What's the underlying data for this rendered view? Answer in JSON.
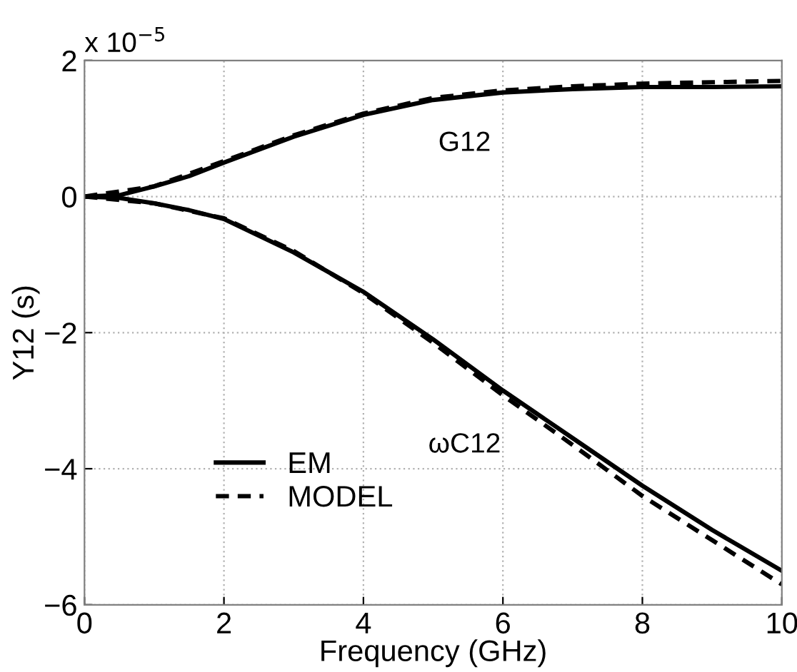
{
  "chart_data": {
    "type": "line",
    "xlabel": "Frequency (GHz)",
    "ylabel": "Y12 (s)",
    "xlim": [
      0,
      10
    ],
    "xticks": [
      0,
      2,
      4,
      6,
      8,
      10
    ],
    "ylim": [
      -6,
      2
    ],
    "yticks": [
      -6,
      -4,
      -2,
      0,
      2
    ],
    "grid": true,
    "legend": "bottom left",
    "annotations": [
      "x 10$^{−5}$",
      "G12",
      "ωC12"
    ],
    "series": [
      {
        "name": "EM",
        "color": "#000000",
        "line_style": "solid",
        "x": [
          0,
          0.5,
          1,
          1.5,
          2,
          3,
          4,
          5,
          6,
          7,
          8,
          9,
          10
        ],
        "values": [
          0,
          0.02,
          0.15,
          0.3,
          0.5,
          0.88,
          1.2,
          1.42,
          1.53,
          1.58,
          1.61,
          1.61,
          1.62
        ]
      },
      {
        "name": "MODEL",
        "color": "#000000",
        "line_style": "dashed",
        "x": [
          0,
          1,
          2,
          3,
          4,
          5,
          6,
          7,
          8,
          9,
          10
        ],
        "values": [
          0,
          0.15,
          0.52,
          0.9,
          1.22,
          1.45,
          1.56,
          1.62,
          1.66,
          1.68,
          1.7
        ]
      },
      {
        "color": "#000000",
        "line_style": "solid",
        "x": [
          0,
          0.5,
          1,
          1.5,
          2,
          3,
          4,
          5,
          6,
          7,
          8,
          9,
          10
        ],
        "values": [
          0,
          -0.02,
          -0.1,
          -0.2,
          -0.33,
          -0.82,
          -1.4,
          -2.1,
          -2.85,
          -3.55,
          -4.25,
          -4.9,
          -5.5
        ]
      },
      {
        "color": "#000000",
        "line_style": "dashed",
        "x": [
          0,
          1,
          2,
          3,
          4,
          5,
          6,
          7,
          8,
          9,
          10
        ],
        "values": [
          0,
          -0.1,
          -0.32,
          -0.8,
          -1.42,
          -2.15,
          -2.92,
          -3.65,
          -4.4,
          -5.05,
          -5.7
        ]
      }
    ]
  }
}
